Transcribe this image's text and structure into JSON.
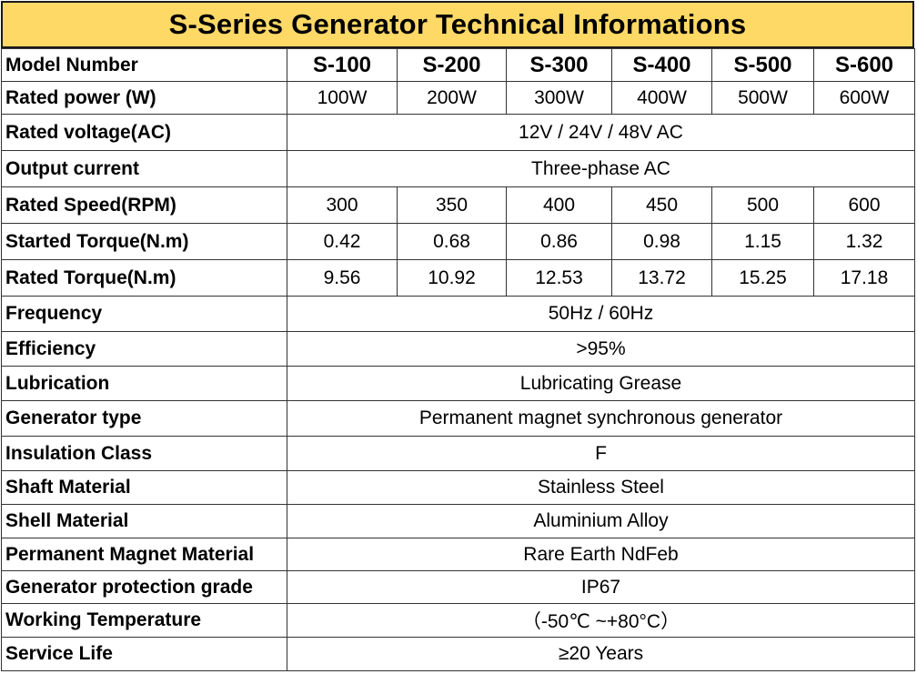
{
  "title": "S-Series Generator Technical Informations",
  "models": {
    "label": "Model Number",
    "values": [
      "S-100",
      "S-200",
      "S-300",
      "S-400",
      "S-500",
      "S-600"
    ]
  },
  "rated_power": {
    "label": "Rated power (W)",
    "values": [
      "100W",
      "200W",
      "300W",
      "400W",
      "500W",
      "600W"
    ]
  },
  "rated_voltage": {
    "label": "Rated voltage(AC)",
    "value": "12V / 24V / 48V AC"
  },
  "output_current": {
    "label": "Output current",
    "value": "Three-phase AC"
  },
  "rated_speed": {
    "label": "Rated Speed(RPM)",
    "values": [
      "300",
      "350",
      "400",
      "450",
      "500",
      "600"
    ]
  },
  "started_torque": {
    "label": "Started Torque(N.m)",
    "values": [
      "0.42",
      "0.68",
      "0.86",
      "0.98",
      "1.15",
      "1.32"
    ]
  },
  "rated_torque": {
    "label": "Rated Torque(N.m)",
    "values": [
      "9.56",
      "10.92",
      "12.53",
      "13.72",
      "15.25",
      "17.18"
    ]
  },
  "frequency": {
    "label": "Frequency",
    "value": "50Hz / 60Hz"
  },
  "efficiency": {
    "label": "Efficiency",
    "value": ">95%"
  },
  "lubrication": {
    "label": "Lubrication",
    "value": "Lubricating Grease"
  },
  "generator_type": {
    "label": "Generator type",
    "value": "Permanent magnet synchronous generator"
  },
  "insulation_class": {
    "label": "Insulation Class",
    "value": "F"
  },
  "shaft_material": {
    "label": "Shaft Material",
    "value": "Stainless Steel"
  },
  "shell_material": {
    "label": "Shell Material",
    "value": "Aluminium Alloy"
  },
  "magnet_material": {
    "label": "Permanent Magnet Material",
    "value": "Rare Earth NdFeb"
  },
  "protection_grade": {
    "label": "Generator protection grade",
    "value": "IP67"
  },
  "working_temperature": {
    "label": "Working Temperature",
    "value": "（-50℃ ~+80°C）"
  },
  "service_life": {
    "label": "Service Life",
    "value": "≥20 Years"
  },
  "colors": {
    "title_background": "#ffd966",
    "border": "#333333"
  }
}
